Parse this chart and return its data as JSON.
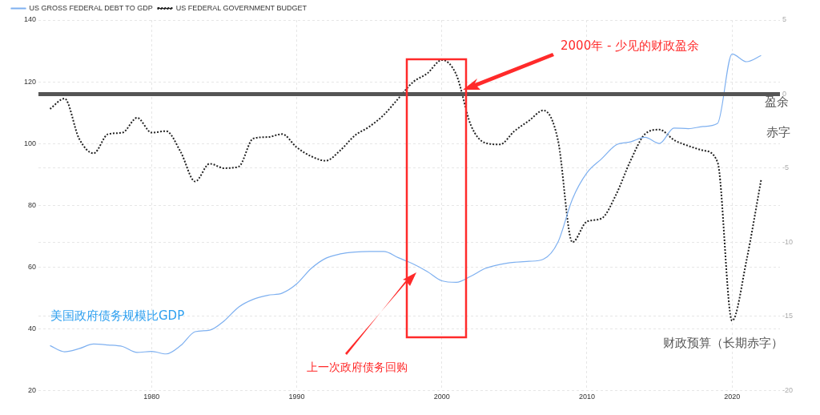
{
  "chart_data": {
    "type": "line",
    "annotations": [
      "2000年 - 少见的财政盈余",
      "上一次政府债务回购",
      "美国政府债务规模比GDP",
      "财政预算（长期赤字）",
      "盈余",
      "赤字"
    ],
    "x": [
      1973,
      1974,
      1975,
      1976,
      1977,
      1978,
      1979,
      1980,
      1981,
      1982,
      1983,
      1984,
      1985,
      1986,
      1987,
      1988,
      1989,
      1990,
      1991,
      1992,
      1993,
      1994,
      1995,
      1996,
      1997,
      1998,
      1999,
      2000,
      2001,
      2002,
      2003,
      2004,
      2005,
      2006,
      2007,
      2008,
      2009,
      2010,
      2011,
      2012,
      2013,
      2014,
      2015,
      2016,
      2017,
      2018,
      2019,
      2020,
      2021,
      2022
    ],
    "series": [
      {
        "name": "US GROSS FEDERAL DEBT TO GDP",
        "color": "#7eb0f0",
        "line_style": "solid",
        "values": [
          34.5,
          32.5,
          33.5,
          35,
          34.7,
          34.2,
          32.3,
          32.6,
          31.8,
          34.5,
          39,
          39.5,
          42.5,
          47,
          49.5,
          50.8,
          51.5,
          54.5,
          59.5,
          62.8,
          64.2,
          64.8,
          65,
          65,
          63,
          61,
          58.5,
          55.5,
          55,
          57,
          59.5,
          60.8,
          61.5,
          61.8,
          62.5,
          68,
          82,
          90.5,
          95,
          99.5,
          100.5,
          102,
          100,
          105,
          104.8,
          105.5,
          106.5,
          129,
          126.5,
          128.5
        ]
      },
      {
        "name": "US FEDERAL GOVERNMENT BUDGET",
        "color": "#222222",
        "line_style": "dotted",
        "axis": "y2",
        "values": [
          -1.0,
          -0.3,
          -3.0,
          -4.0,
          -2.7,
          -2.6,
          -1.6,
          -2.6,
          -2.5,
          -3.9,
          -5.9,
          -4.7,
          -5.0,
          -4.9,
          -3.0,
          -2.9,
          -2.7,
          -3.6,
          -4.2,
          -4.5,
          -3.8,
          -2.8,
          -2.2,
          -1.4,
          -0.3,
          0.8,
          1.4,
          2.3,
          1.3,
          -2.1,
          -3.3,
          -3.4,
          -2.5,
          -1.8,
          -1.1,
          -3.1,
          -10.0,
          -8.6,
          -8.4,
          -6.8,
          -4.5,
          -2.7,
          -2.4,
          -3.1,
          -3.5,
          -3.8,
          -4.6,
          -15.3,
          -11.2,
          -5.8
        ]
      }
    ],
    "xlim": [
      1972.2,
      2023.3
    ],
    "xticks": [
      1980,
      1990,
      2000,
      2010,
      2020
    ],
    "ylim": [
      20,
      140
    ],
    "yticks": [
      20,
      40,
      60,
      80,
      100,
      120,
      140
    ],
    "y2lim": [
      -20,
      5
    ],
    "y2ticks": [
      -20,
      -15,
      -10,
      -5,
      0,
      5
    ],
    "ref_lines": [
      {
        "axis": "y2",
        "value": 0,
        "color": "#555555"
      }
    ],
    "grid": true,
    "legend": "top left",
    "marker": "none"
  }
}
